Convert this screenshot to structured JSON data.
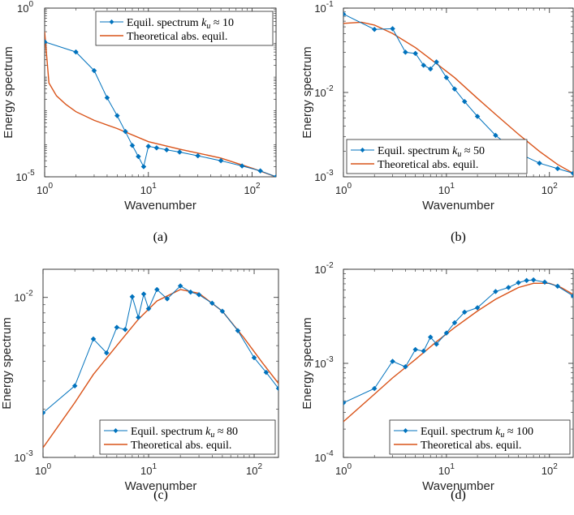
{
  "chart_data": [
    {
      "type": "line",
      "caption": "(a)",
      "xlabel": "Wavenumber",
      "ylabel": "Energy spectrum",
      "xscale": "log",
      "yscale": "log",
      "xlim": [
        1,
        170
      ],
      "ylim": [
        1e-05,
        1
      ],
      "xticks": [
        {
          "v": 1,
          "b": "10",
          "e": "0"
        },
        {
          "v": 10,
          "b": "10",
          "e": "1"
        },
        {
          "v": 100,
          "b": "10",
          "e": "2"
        }
      ],
      "yticks": [
        {
          "v": 1e-05,
          "b": "10",
          "e": "-5"
        },
        {
          "v": 1,
          "b": "10",
          "e": "0"
        }
      ],
      "legend_position": "top-right",
      "series": [
        {
          "name": "Equil. spectrum",
          "name_math": "k",
          "name_sub": "u",
          "name_tail": "≈ 10",
          "color": "#0072BD",
          "marker": "diamond",
          "x": [
            1,
            2,
            3,
            4,
            5,
            6,
            7,
            8,
            9,
            10,
            12,
            15,
            20,
            30,
            50,
            80,
            120,
            170
          ],
          "y": [
            0.1,
            0.05,
            0.014,
            0.0022,
            0.00065,
            0.00022,
            8.5e-05,
            4e-05,
            2e-05,
            8e-05,
            7.2e-05,
            6.3e-05,
            5.4e-05,
            4.2e-05,
            3e-05,
            2.1e-05,
            1.5e-05,
            1e-05
          ]
        },
        {
          "name": "Theoretical abs. equil.",
          "color": "#D95319",
          "marker": "none",
          "x": [
            1,
            1.1,
            1.3,
            1.6,
            2,
            3,
            5,
            10,
            20,
            50,
            100,
            170
          ],
          "y": [
            0.2,
            0.006,
            0.0025,
            0.0014,
            0.00085,
            0.00047,
            0.00027,
            0.00011,
            6.6e-05,
            3.6e-05,
            1.8e-05,
            1e-05
          ]
        }
      ]
    },
    {
      "type": "line",
      "caption": "(b)",
      "xlabel": "Wavenumber",
      "ylabel": "Energy spectrum",
      "xscale": "log",
      "yscale": "log",
      "xlim": [
        1,
        170
      ],
      "ylim": [
        0.001,
        0.1
      ],
      "xticks": [
        {
          "v": 1,
          "b": "10",
          "e": "0"
        },
        {
          "v": 10,
          "b": "10",
          "e": "1"
        },
        {
          "v": 100,
          "b": "10",
          "e": "2"
        }
      ],
      "yticks": [
        {
          "v": 0.001,
          "b": "10",
          "e": "-3"
        },
        {
          "v": 0.01,
          "b": "10",
          "e": "-2"
        },
        {
          "v": 0.1,
          "b": "10",
          "e": "-1"
        }
      ],
      "legend_position": "bottom-left",
      "series": [
        {
          "name": "Equil. spectrum",
          "name_math": "k",
          "name_sub": "u",
          "name_tail": "≈ 50",
          "color": "#0072BD",
          "marker": "diamond",
          "x": [
            1,
            2,
            3,
            4,
            5,
            6,
            7,
            8,
            10,
            12,
            15,
            20,
            30,
            50,
            80,
            120,
            170
          ],
          "y": [
            0.085,
            0.056,
            0.057,
            0.03,
            0.029,
            0.021,
            0.019,
            0.023,
            0.015,
            0.011,
            0.0078,
            0.0052,
            0.0031,
            0.0019,
            0.00145,
            0.00125,
            0.0011
          ]
        },
        {
          "name": "Theoretical abs. equil.",
          "color": "#D95319",
          "marker": "none",
          "x": [
            1,
            1.5,
            2,
            3,
            5,
            8,
            12,
            20,
            30,
            50,
            80,
            120,
            170
          ],
          "y": [
            0.066,
            0.068,
            0.063,
            0.05,
            0.034,
            0.022,
            0.015,
            0.0085,
            0.0055,
            0.0032,
            0.002,
            0.0014,
            0.0011
          ]
        }
      ]
    },
    {
      "type": "line",
      "caption": "(c)",
      "xlabel": "Wavenumber",
      "ylabel": "Energy spectrum",
      "xscale": "log",
      "yscale": "log",
      "xlim": [
        1,
        170
      ],
      "ylim": [
        0.001,
        0.015
      ],
      "xticks": [
        {
          "v": 1,
          "b": "10",
          "e": "0"
        },
        {
          "v": 10,
          "b": "10",
          "e": "1"
        },
        {
          "v": 100,
          "b": "10",
          "e": "2"
        }
      ],
      "yticks": [
        {
          "v": 0.001,
          "b": "10",
          "e": "-3"
        },
        {
          "v": 0.01,
          "b": "10",
          "e": "-2"
        }
      ],
      "legend_position": "bottom-right",
      "series": [
        {
          "name": "Equil. spectrum",
          "name_math": "k",
          "name_sub": "u",
          "name_tail": "≈ 80",
          "color": "#0072BD",
          "marker": "diamond",
          "x": [
            1,
            2,
            3,
            4,
            5,
            6,
            7,
            8,
            9,
            10,
            12,
            15,
            20,
            25,
            30,
            40,
            50,
            70,
            100,
            130,
            170
          ],
          "y": [
            0.0019,
            0.0028,
            0.0055,
            0.0045,
            0.0065,
            0.0063,
            0.0101,
            0.0075,
            0.0105,
            0.0085,
            0.0112,
            0.0098,
            0.0118,
            0.0108,
            0.0104,
            0.0092,
            0.0082,
            0.0062,
            0.0042,
            0.0034,
            0.0027
          ]
        },
        {
          "name": "Theoretical abs. equil.",
          "color": "#D95319",
          "marker": "none",
          "x": [
            1,
            2,
            3,
            5,
            8,
            12,
            20,
            30,
            50,
            80,
            120,
            170
          ],
          "y": [
            0.00115,
            0.0022,
            0.0033,
            0.005,
            0.0073,
            0.0095,
            0.0112,
            0.0106,
            0.0082,
            0.0056,
            0.0039,
            0.0029
          ]
        }
      ]
    },
    {
      "type": "line",
      "caption": "(d)",
      "xlabel": "Wavenumber",
      "ylabel": "Energy spectrum",
      "xscale": "log",
      "yscale": "log",
      "xlim": [
        1,
        170
      ],
      "ylim": [
        0.0001,
        0.01
      ],
      "xticks": [
        {
          "v": 1,
          "b": "10",
          "e": "0"
        },
        {
          "v": 10,
          "b": "10",
          "e": "1"
        },
        {
          "v": 100,
          "b": "10",
          "e": "2"
        }
      ],
      "yticks": [
        {
          "v": 0.0001,
          "b": "10",
          "e": "-4"
        },
        {
          "v": 0.001,
          "b": "10",
          "e": "-3"
        },
        {
          "v": 0.01,
          "b": "10",
          "e": "-2"
        }
      ],
      "legend_position": "bottom-right",
      "series": [
        {
          "name": "Equil. spectrum",
          "name_math": "k",
          "name_sub": "u",
          "name_tail": "≈ 100",
          "color": "#0072BD",
          "marker": "diamond",
          "x": [
            1,
            2,
            3,
            4,
            5,
            6,
            7,
            8,
            10,
            12,
            15,
            20,
            30,
            40,
            50,
            60,
            70,
            90,
            120,
            170
          ],
          "y": [
            0.00038,
            0.00054,
            0.00105,
            0.00092,
            0.0014,
            0.00135,
            0.0019,
            0.0016,
            0.0021,
            0.0027,
            0.0035,
            0.0039,
            0.0058,
            0.0064,
            0.0072,
            0.0076,
            0.0077,
            0.0073,
            0.0066,
            0.0052
          ]
        },
        {
          "name": "Theoretical abs. equil.",
          "color": "#D95319",
          "marker": "none",
          "x": [
            1,
            2,
            3,
            5,
            8,
            12,
            20,
            30,
            50,
            70,
            100,
            130,
            170
          ],
          "y": [
            0.00024,
            0.00047,
            0.0007,
            0.0011,
            0.0017,
            0.0024,
            0.0036,
            0.0048,
            0.0064,
            0.0071,
            0.0071,
            0.0064,
            0.0054
          ]
        }
      ]
    }
  ]
}
